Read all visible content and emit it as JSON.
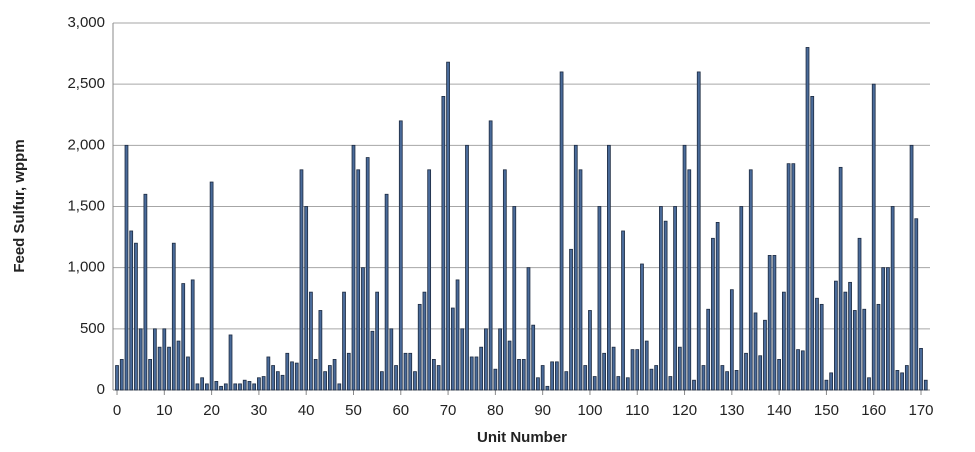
{
  "chart_data": {
    "type": "bar",
    "x_label": "Unit Number",
    "y_label": "Feed Sulfur, wppm",
    "color": "#4a6b9a",
    "edge_color": "#1c2a40",
    "grid": true,
    "x": [
      0,
      1,
      2,
      3,
      4,
      5,
      6,
      7,
      8,
      9,
      10,
      11,
      12,
      13,
      14,
      15,
      16,
      17,
      18,
      19,
      20,
      21,
      22,
      23,
      24,
      25,
      26,
      27,
      28,
      29,
      30,
      31,
      32,
      33,
      34,
      35,
      36,
      37,
      38,
      39,
      40,
      41,
      42,
      43,
      44,
      45,
      46,
      47,
      48,
      49,
      50,
      51,
      52,
      53,
      54,
      55,
      56,
      57,
      58,
      59,
      60,
      61,
      62,
      63,
      64,
      65,
      66,
      67,
      68,
      69,
      70,
      71,
      72,
      73,
      74,
      75,
      76,
      77,
      78,
      79,
      80,
      81,
      82,
      83,
      84,
      85,
      86,
      87,
      88,
      89,
      90,
      91,
      92,
      93,
      94,
      95,
      96,
      97,
      98,
      99,
      100,
      101,
      102,
      103,
      104,
      105,
      106,
      107,
      108,
      109,
      110,
      111,
      112,
      113,
      114,
      115,
      116,
      117,
      118,
      119,
      120,
      121,
      122,
      123,
      124,
      125,
      126,
      127,
      128,
      129,
      130,
      131,
      132,
      133,
      134,
      135,
      136,
      137,
      138,
      139,
      140,
      141,
      142,
      143,
      144,
      145,
      146,
      147,
      148,
      149,
      150,
      151,
      152,
      153,
      154,
      155,
      156,
      157,
      158,
      159,
      160,
      161,
      162,
      163,
      164,
      165,
      166,
      167,
      168,
      169,
      170,
      171
    ],
    "values": [
      200,
      250,
      2000,
      1300,
      1200,
      500,
      1600,
      250,
      500,
      350,
      500,
      350,
      1200,
      400,
      870,
      270,
      900,
      50,
      100,
      50,
      1700,
      70,
      30,
      50,
      450,
      50,
      50,
      80,
      70,
      50,
      100,
      110,
      270,
      200,
      150,
      120,
      300,
      230,
      220,
      1800,
      1500,
      800,
      250,
      650,
      150,
      200,
      250,
      50,
      800,
      300,
      2000,
      1800,
      1000,
      1900,
      480,
      800,
      150,
      1600,
      500,
      200,
      2200,
      300,
      300,
      150,
      700,
      800,
      1800,
      250,
      200,
      2400,
      2680,
      670,
      900,
      500,
      2000,
      270,
      270,
      350,
      500,
      2200,
      170,
      500,
      1800,
      400,
      1500,
      250,
      250,
      1000,
      530,
      100,
      200,
      30,
      230,
      230,
      2600,
      150,
      1150,
      2000,
      1800,
      200,
      650,
      110,
      1500,
      300,
      2000,
      350,
      110,
      1300,
      100,
      330,
      330,
      1030,
      400,
      170,
      200,
      1500,
      1380,
      110,
      1500,
      350,
      2000,
      1800,
      80,
      2600,
      200,
      660,
      1240,
      1370,
      200,
      150,
      820,
      160,
      1500,
      300,
      1800,
      630,
      280,
      570,
      1100,
      1100,
      250,
      800,
      1850,
      1850,
      330,
      320,
      2800,
      2400,
      750,
      700,
      80,
      140,
      890,
      1820,
      800,
      880,
      650,
      1240,
      660,
      100,
      2500,
      700,
      1000,
      1000,
      1500,
      160,
      140,
      200,
      2000,
      1400,
      340,
      80
    ],
    "xlim": [
      -0.85,
      171.9
    ],
    "xticks": [
      0,
      10,
      20,
      30,
      40,
      50,
      60,
      70,
      80,
      90,
      100,
      110,
      120,
      130,
      140,
      150,
      160,
      170
    ],
    "ylim": [
      0,
      3000
    ],
    "yticks": [
      0,
      {
        "value": 500,
        "label": "500"
      },
      {
        "value": 1000,
        "label": "1,000"
      },
      {
        "value": 1500,
        "label": "1,500"
      },
      {
        "value": 2000,
        "label": "2,000"
      },
      {
        "value": 2500,
        "label": "2,500"
      },
      {
        "value": 3000,
        "label": "3,000"
      }
    ]
  }
}
